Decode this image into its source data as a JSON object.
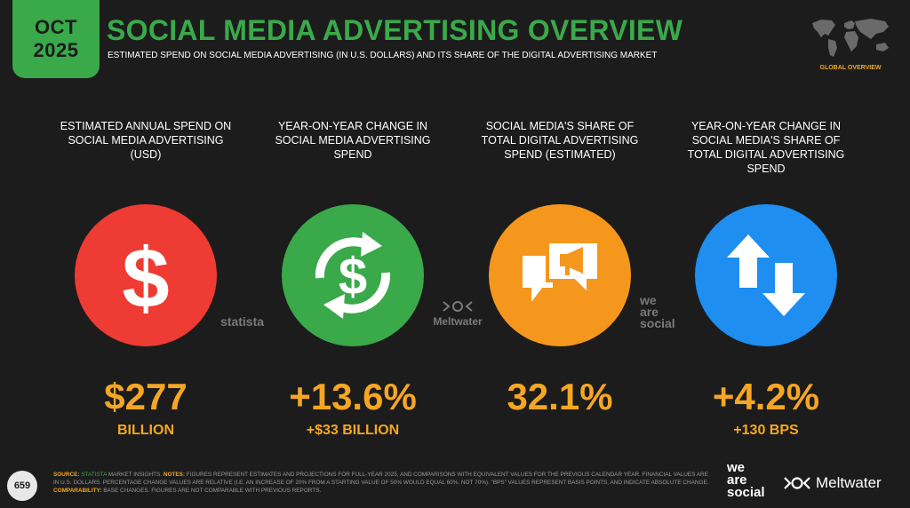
{
  "header": {
    "month": "OCT",
    "year": "2025",
    "title": "SOCIAL MEDIA ADVERTISING OVERVIEW",
    "subtitle": "ESTIMATED SPEND ON SOCIAL MEDIA ADVERTISING (IN U.S. DOLLARS) AND ITS SHARE OF THE DIGITAL ADVERTISING MARKET",
    "region": "GLOBAL OVERVIEW"
  },
  "stats": [
    {
      "label": "ESTIMATED ANNUAL SPEND ON SOCIAL MEDIA ADVERTISING (USD)",
      "value": "$277",
      "sub": "BILLION",
      "icon": "dollar-icon",
      "color": "#ee3b33"
    },
    {
      "label": "YEAR-ON-YEAR CHANGE IN SOCIAL MEDIA ADVERTISING SPEND",
      "value": "+13.6%",
      "sub": "+$33 BILLION",
      "icon": "dollar-cycle-icon",
      "color": "#3aa94a"
    },
    {
      "label": "SOCIAL MEDIA'S SHARE OF TOTAL DIGITAL ADVERTISING SPEND (ESTIMATED)",
      "value": "32.1%",
      "sub": "",
      "icon": "speech-megaphone-icon",
      "color": "#f5971d"
    },
    {
      "label": "YEAR-ON-YEAR CHANGE IN SOCIAL MEDIA'S SHARE OF TOTAL DIGITAL ADVERTISING SPEND",
      "value": "+4.2%",
      "sub": "+130 BPS",
      "icon": "up-down-arrows-icon",
      "color": "#1e8ef0"
    }
  ],
  "sources": {
    "statista": "statista",
    "meltwater": "Meltwater",
    "we": "we",
    "are": "are",
    "social": "social"
  },
  "footer": {
    "page": "659",
    "source_key": "SOURCE:",
    "source_link": "STATISTA",
    "source_text": " MARKET INSIGHTS.",
    "notes_key": "NOTES:",
    "notes_text": " FIGURES REPRESENT ESTIMATES AND PROJECTIONS FOR FULL-YEAR 2025, AND COMPARISONS WITH EQUIVALENT VALUES FOR THE PREVIOUS CALENDAR YEAR. FINANCIAL VALUES ARE IN U.S. DOLLARS. PERCENTAGE CHANGE VALUES ARE RELATIVE (I.E. AN INCREASE OF 20% FROM A STARTING VALUE OF 50% WOULD EQUAL 60%, NOT 70%). \"BPS\" VALUES REPRESENT BASIS POINTS, AND INDICATE ABSOLUTE CHANGE.",
    "comp_key": "COMPARABILITY:",
    "comp_text": " BASE CHANGES. FIGURES ARE NOT COMPARABLE WITH PREVIOUS REPORTS.",
    "logo_we": "we",
    "logo_are": "are",
    "logo_social": "social",
    "logo_meltwater": "Meltwater"
  }
}
